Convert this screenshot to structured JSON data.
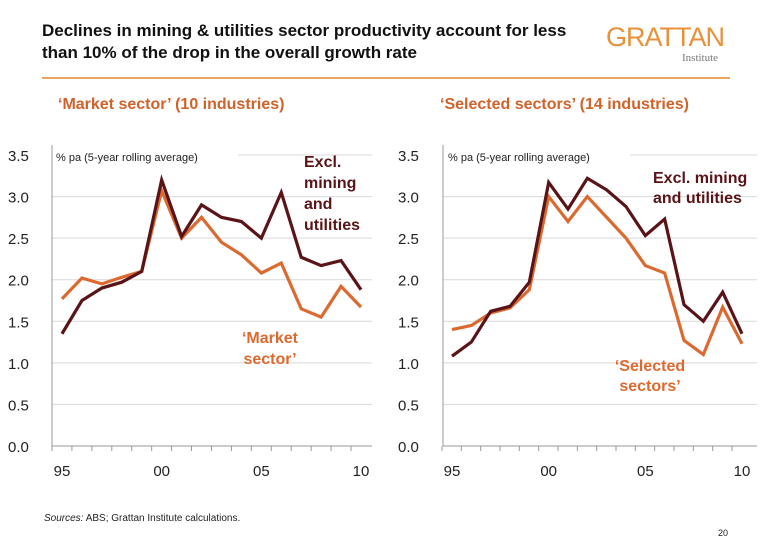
{
  "title": "Declines in mining & utilities sector productivity account for less than 10% of the drop in the overall growth rate",
  "logo": {
    "name": "GRATTAN",
    "sub": "Institute",
    "color": "#e8913a"
  },
  "colors": {
    "excl": "#5a1418",
    "sector": "#dc6a30",
    "grid": "#d9d9d9"
  },
  "chart_data": [
    {
      "type": "line",
      "title": "‘Market sector’ (10 industries)",
      "ylabel": "% pa (5-year rolling average)",
      "ylim": [
        0,
        3.5
      ],
      "yticks": [
        "0.0",
        "0.5",
        "1.0",
        "1.5",
        "2.0",
        "2.5",
        "3.0",
        "3.5"
      ],
      "xticks": [
        "95",
        "00",
        "05",
        "10"
      ],
      "x": [
        1995,
        1996,
        1997,
        1998,
        1999,
        2000,
        2001,
        2002,
        2003,
        2004,
        2005,
        2006,
        2007,
        2008,
        2009,
        2010
      ],
      "grid": true,
      "series": [
        {
          "name": "Excl. mining and utilities",
          "label_lines": [
            "Excl.",
            "mining",
            "and",
            "utilities"
          ],
          "values": [
            1.35,
            1.75,
            1.9,
            1.97,
            2.1,
            3.2,
            2.52,
            2.9,
            2.75,
            2.7,
            2.5,
            3.05,
            2.27,
            2.17,
            2.23,
            1.88
          ]
        },
        {
          "name": "‘Market sector’",
          "label_lines": [
            "‘Market",
            "sector’"
          ],
          "values": [
            1.77,
            2.02,
            1.95,
            2.03,
            2.1,
            3.07,
            2.5,
            2.75,
            2.45,
            2.3,
            2.08,
            2.2,
            1.65,
            1.55,
            1.92,
            1.67
          ]
        }
      ]
    },
    {
      "type": "line",
      "title": "‘Selected sectors’ (14 industries)",
      "ylabel": "% pa (5-year rolling average)",
      "ylim": [
        0,
        3.5
      ],
      "yticks": [
        "0.0",
        "0.5",
        "1.0",
        "1.5",
        "2.0",
        "2.5",
        "3.0",
        "3.5"
      ],
      "xticks": [
        "95",
        "00",
        "05",
        "10"
      ],
      "x": [
        1995,
        1996,
        1997,
        1998,
        1999,
        2000,
        2001,
        2002,
        2003,
        2004,
        2005,
        2006,
        2007,
        2008,
        2009,
        2010
      ],
      "grid": true,
      "series": [
        {
          "name": "Excl. mining and utilities",
          "label_lines": [
            "Excl. mining",
            "and utilities"
          ],
          "values": [
            1.08,
            1.25,
            1.62,
            1.68,
            1.97,
            3.17,
            2.85,
            3.22,
            3.08,
            2.88,
            2.53,
            2.73,
            1.7,
            1.5,
            1.85,
            1.35
          ]
        },
        {
          "name": "‘Selected sectors’",
          "label_lines": [
            "‘Selected",
            "sectors’"
          ],
          "values": [
            1.4,
            1.45,
            1.6,
            1.66,
            1.88,
            3.0,
            2.7,
            3.0,
            2.75,
            2.5,
            2.17,
            2.08,
            1.27,
            1.1,
            1.67,
            1.23
          ]
        }
      ]
    }
  ],
  "source": {
    "label": "Sources:",
    "text": " ABS; Grattan Institute calculations."
  },
  "page_number": "20"
}
